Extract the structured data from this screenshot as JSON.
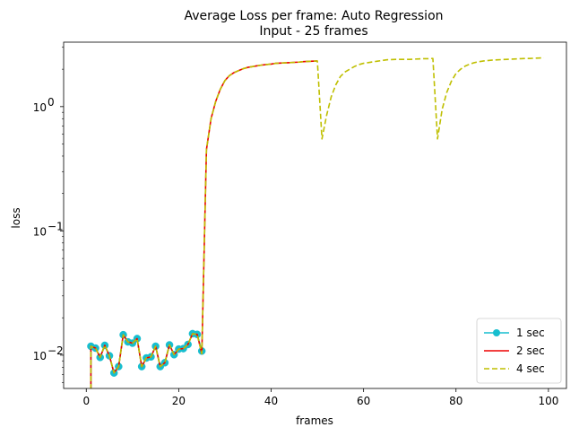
{
  "chart_data": {
    "type": "line",
    "title": "Average Loss per frame: Auto Regression",
    "subtitle": "Input - 25 frames",
    "xlabel": "frames",
    "ylabel": "loss",
    "y_scale": "log",
    "xlim": [
      -4.9,
      103.9
    ],
    "ylim": [
      0.0054,
      3.3
    ],
    "x_ticks": [
      0,
      20,
      40,
      60,
      80,
      100
    ],
    "x_tick_labels": [
      "0",
      "20",
      "40",
      "60",
      "80",
      "100"
    ],
    "y_ticks": [
      0.01,
      0.1,
      1
    ],
    "y_tick_labels": [
      "10",
      "10",
      "10"
    ],
    "y_tick_exponents": [
      "−2",
      "−1",
      "0"
    ],
    "grid": false,
    "legend_position": "lower-right",
    "series": [
      {
        "name": "1 sec",
        "color": "#17becf",
        "style": "solid",
        "marker": "circle",
        "x": [
          1,
          2,
          3,
          4,
          5,
          6,
          7,
          8,
          9,
          10,
          11,
          12,
          13,
          14,
          15,
          16,
          17,
          18,
          19,
          20,
          21,
          22,
          23,
          24,
          25
        ],
        "y": [
          0.0118,
          0.0114,
          0.0096,
          0.012,
          0.0099,
          0.0072,
          0.0081,
          0.0146,
          0.0128,
          0.0125,
          0.0136,
          0.0081,
          0.0095,
          0.0097,
          0.0118,
          0.0081,
          0.0087,
          0.0121,
          0.0101,
          0.0112,
          0.0113,
          0.0122,
          0.0149,
          0.0147,
          0.0108
        ]
      },
      {
        "name": "2 sec",
        "color": "#ee0000",
        "style": "solid",
        "marker": "none",
        "x": [
          1,
          2,
          3,
          4,
          5,
          6,
          7,
          8,
          9,
          10,
          11,
          12,
          13,
          14,
          15,
          16,
          17,
          18,
          19,
          20,
          21,
          22,
          23,
          24,
          25,
          26,
          27,
          28,
          29,
          30,
          31,
          32,
          33,
          34,
          35,
          36,
          37,
          38,
          39,
          40,
          41,
          42,
          43,
          44,
          45,
          46,
          47,
          48,
          49,
          50
        ],
        "y": [
          0.0118,
          0.0114,
          0.0096,
          0.012,
          0.0099,
          0.0072,
          0.0081,
          0.0146,
          0.0128,
          0.0125,
          0.0136,
          0.0081,
          0.0095,
          0.0097,
          0.0118,
          0.0081,
          0.0087,
          0.0121,
          0.0101,
          0.0112,
          0.0113,
          0.0122,
          0.0149,
          0.0147,
          0.0103,
          0.45,
          0.8,
          1.1,
          1.38,
          1.62,
          1.78,
          1.88,
          1.95,
          2.02,
          2.07,
          2.1,
          2.13,
          2.16,
          2.18,
          2.2,
          2.23,
          2.24,
          2.25,
          2.26,
          2.27,
          2.28,
          2.3,
          2.31,
          2.32,
          2.33
        ]
      },
      {
        "name": "4 sec",
        "color": "#bfbf00",
        "style": "dashed",
        "marker": "none",
        "x": [
          1,
          2,
          3,
          4,
          5,
          6,
          7,
          8,
          9,
          10,
          11,
          12,
          13,
          14,
          15,
          16,
          17,
          18,
          19,
          20,
          21,
          22,
          23,
          24,
          25,
          26,
          27,
          28,
          29,
          30,
          31,
          32,
          33,
          34,
          35,
          36,
          37,
          38,
          39,
          40,
          41,
          42,
          43,
          44,
          45,
          46,
          47,
          48,
          49,
          50,
          51,
          52,
          53,
          54,
          55,
          56,
          57,
          58,
          59,
          60,
          61,
          62,
          63,
          64,
          65,
          66,
          67,
          68,
          69,
          70,
          71,
          72,
          73,
          74,
          75,
          76,
          77,
          78,
          79,
          80,
          81,
          82,
          83,
          84,
          85,
          86,
          87,
          88,
          89,
          90,
          91,
          92,
          93,
          94,
          95,
          96,
          97,
          98,
          99
        ],
        "y": [
          0.0118,
          0.0114,
          0.0096,
          0.012,
          0.0099,
          0.0072,
          0.0081,
          0.0146,
          0.0128,
          0.0125,
          0.0136,
          0.0081,
          0.0095,
          0.0097,
          0.0118,
          0.0081,
          0.0087,
          0.0121,
          0.0101,
          0.0112,
          0.0113,
          0.0122,
          0.0149,
          0.0147,
          0.0103,
          0.45,
          0.8,
          1.1,
          1.38,
          1.62,
          1.78,
          1.88,
          1.95,
          2.02,
          2.07,
          2.1,
          2.13,
          2.16,
          2.18,
          2.2,
          2.23,
          2.24,
          2.25,
          2.26,
          2.27,
          2.28,
          2.3,
          2.31,
          2.32,
          2.33,
          0.55,
          0.85,
          1.2,
          1.5,
          1.75,
          1.9,
          2.0,
          2.1,
          2.18,
          2.23,
          2.26,
          2.29,
          2.32,
          2.35,
          2.38,
          2.39,
          2.4,
          2.4,
          2.4,
          2.4,
          2.41,
          2.42,
          2.43,
          2.43,
          2.44,
          0.55,
          0.95,
          1.3,
          1.6,
          1.85,
          2.0,
          2.12,
          2.2,
          2.26,
          2.3,
          2.33,
          2.35,
          2.37,
          2.38,
          2.39,
          2.4,
          2.41,
          2.42,
          2.43,
          2.44,
          2.44,
          2.45,
          2.46,
          2.47
        ]
      }
    ]
  }
}
